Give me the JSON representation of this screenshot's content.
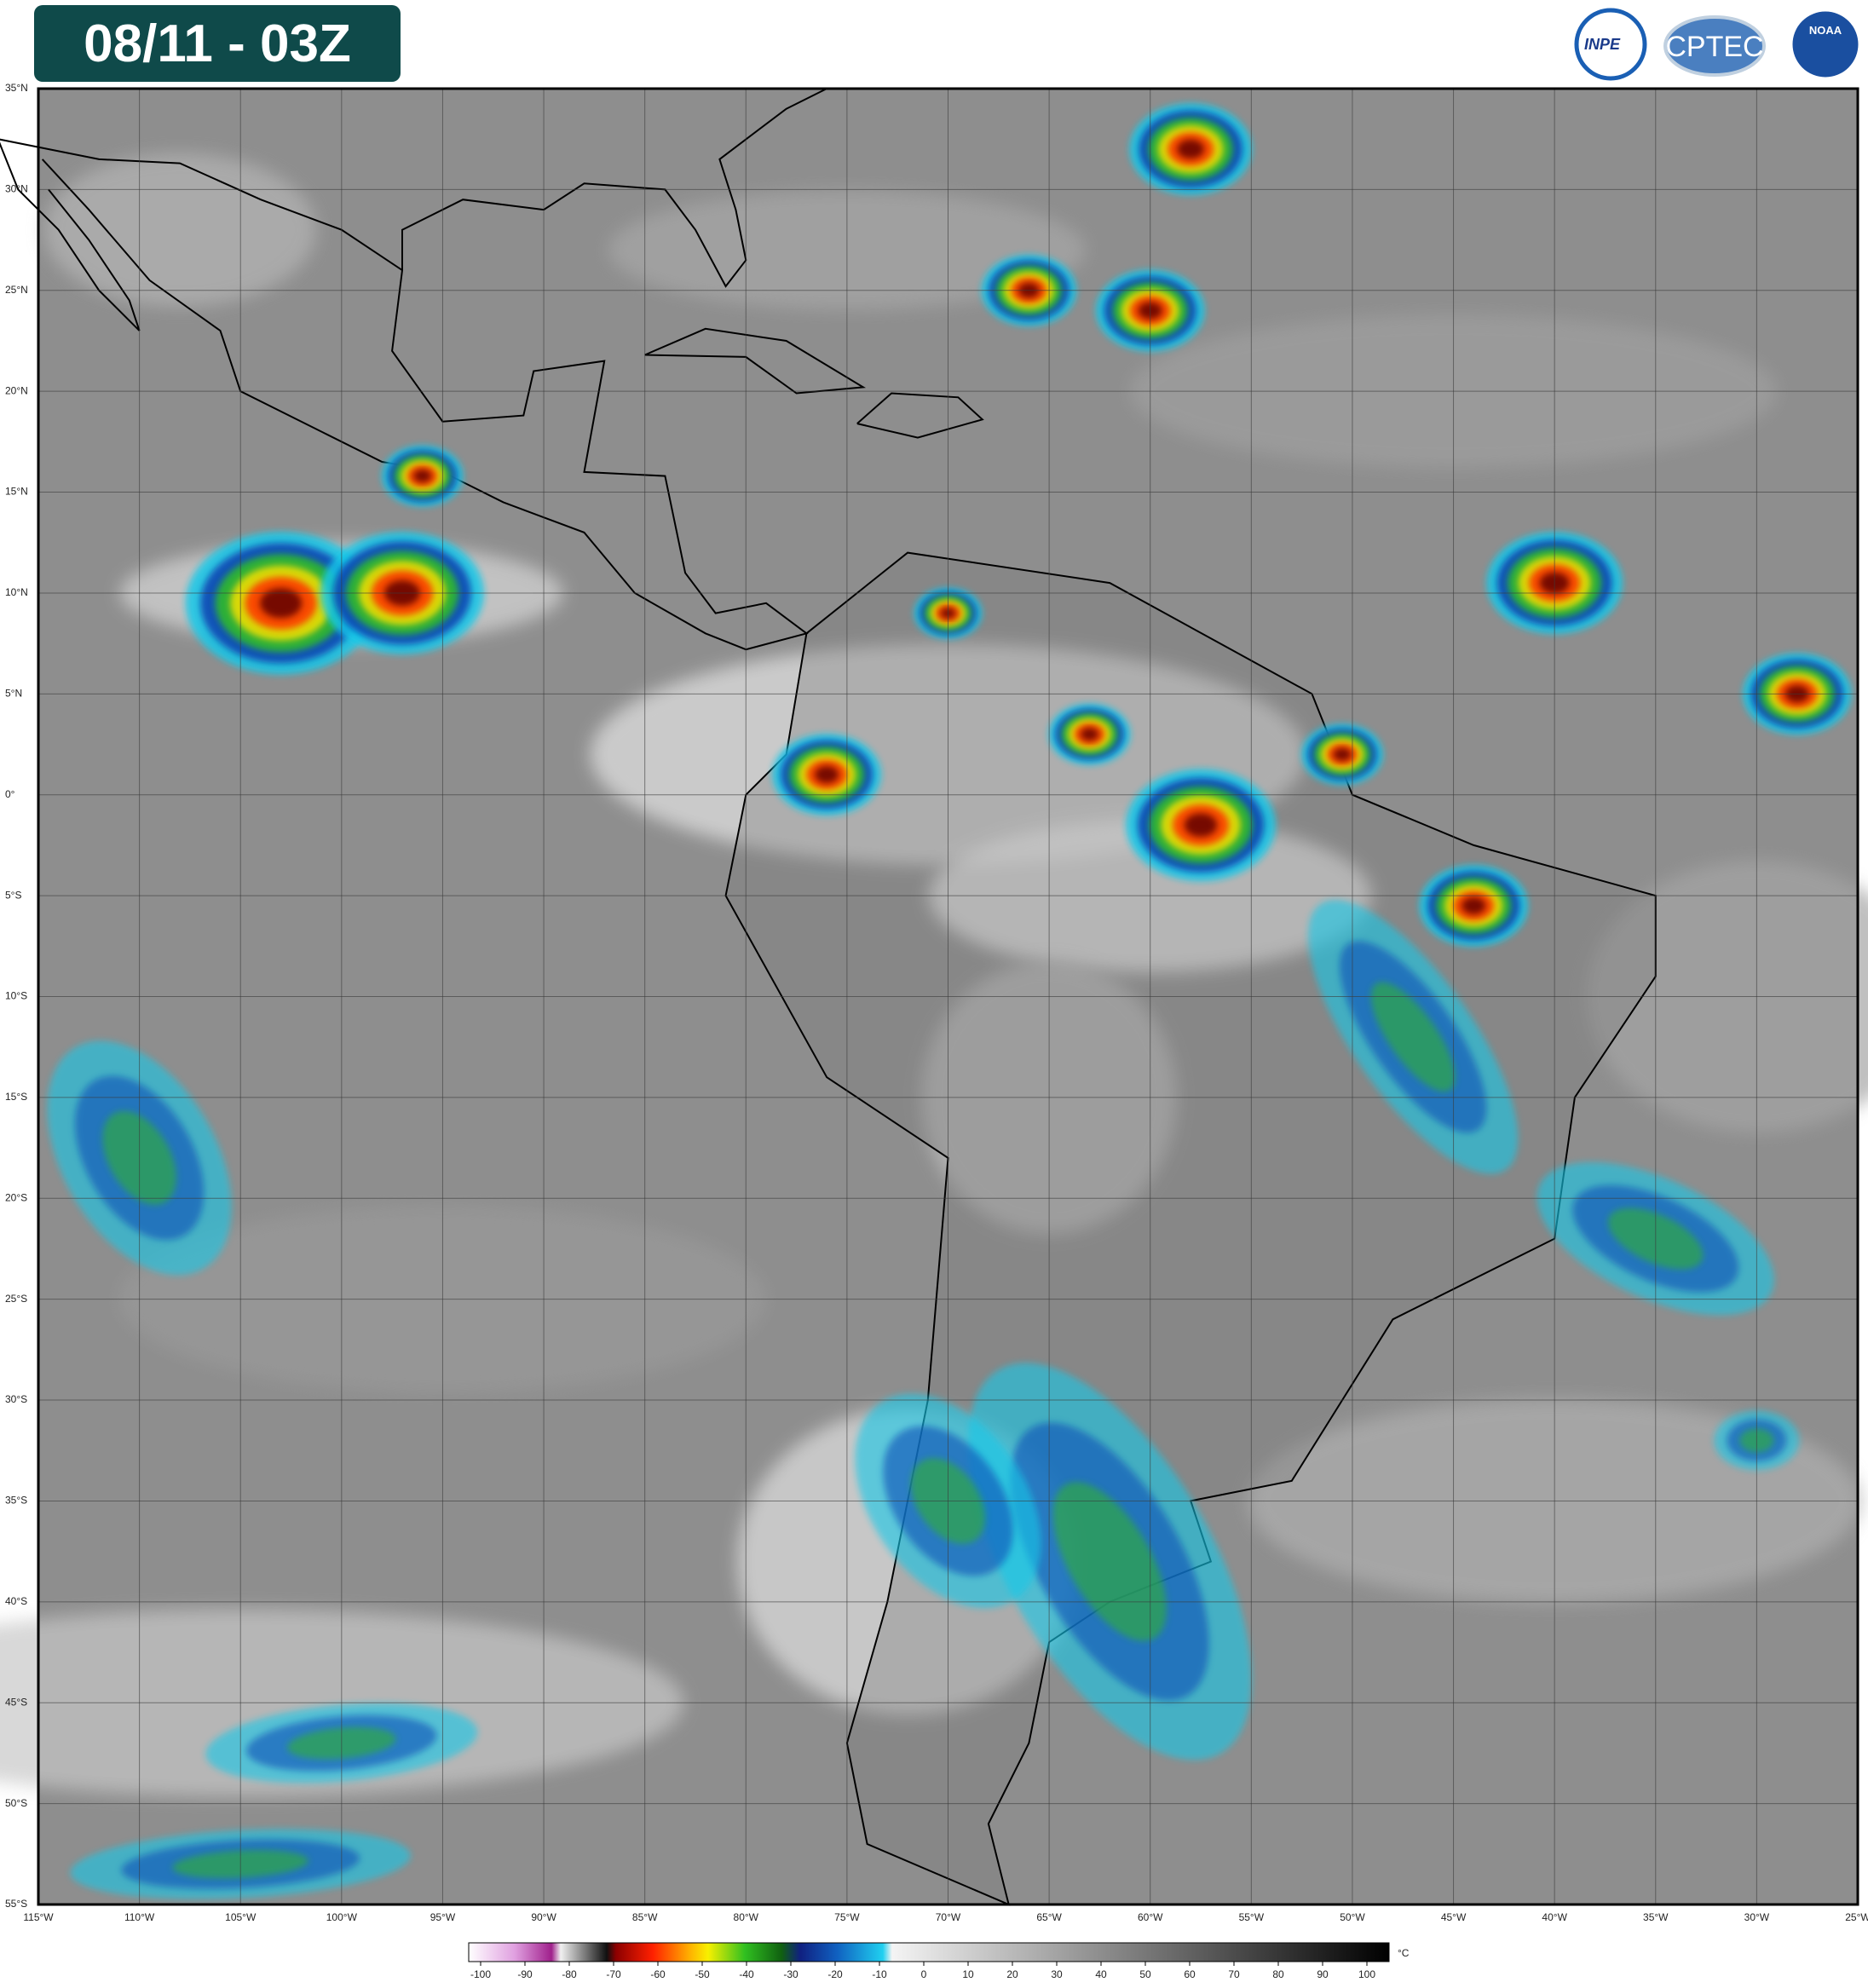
{
  "header": {
    "title": "08/11 - 03Z",
    "logos": [
      "INPE",
      "CPTEC",
      "NOAA"
    ]
  },
  "map": {
    "lat_labels": [
      "35°N",
      "30°N",
      "25°N",
      "20°N",
      "15°N",
      "10°N",
      "5°N",
      "0°",
      "5°S",
      "10°S",
      "15°S",
      "20°S",
      "25°S",
      "30°S",
      "35°S",
      "40°S",
      "45°S",
      "50°S",
      "55°S"
    ],
    "lon_labels": [
      "115°W",
      "110°W",
      "105°W",
      "100°W",
      "95°W",
      "90°W",
      "85°W",
      "80°W",
      "75°W",
      "70°W",
      "65°W",
      "60°W",
      "55°W",
      "50°W",
      "45°W",
      "40°W",
      "35°W",
      "30°W",
      "25°W"
    ]
  },
  "colorbar": {
    "labels": [
      "-100",
      "-90",
      "-80",
      "-70",
      "-60",
      "-50",
      "-40",
      "-30",
      "-20",
      "-10",
      "0",
      "10",
      "20",
      "30",
      "40",
      "50",
      "60",
      "70",
      "80",
      "90",
      "100"
    ],
    "unit": "°C"
  }
}
